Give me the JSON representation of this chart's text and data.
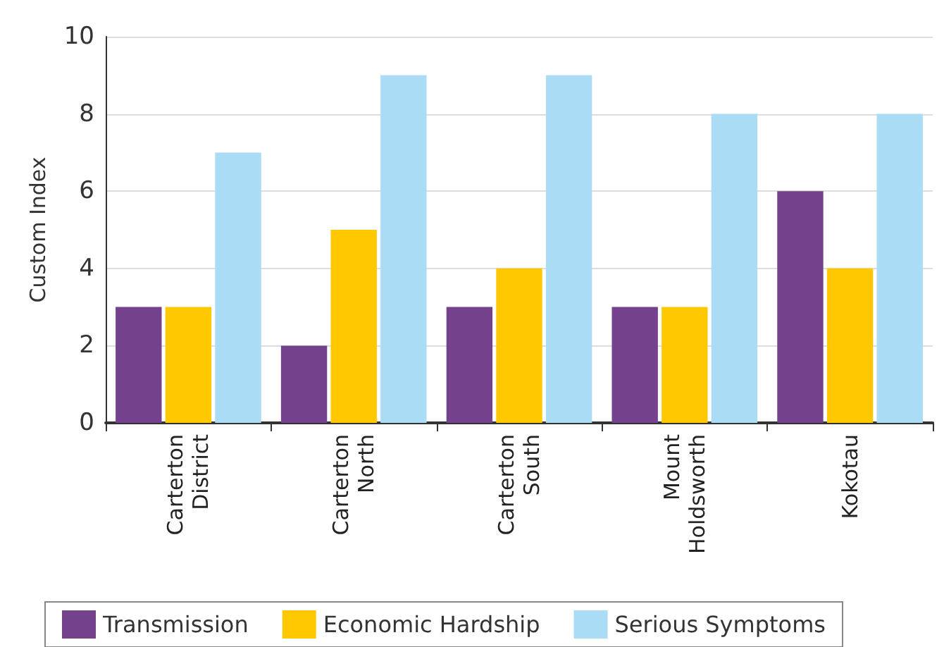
{
  "chart_data": {
    "type": "bar",
    "ylabel": "Custom Index",
    "categories": [
      "Carterton District",
      "Carterton North",
      "Carterton South",
      "Mount Holdsworth",
      "Kokotau"
    ],
    "series": [
      {
        "name": "Transmission",
        "color": "#74428c",
        "values": [
          3,
          2,
          3,
          3,
          6
        ]
      },
      {
        "name": "Economic Hardship",
        "color": "#ffc800",
        "values": [
          3,
          5,
          4,
          3,
          4
        ]
      },
      {
        "name": "Serious Symptoms",
        "color": "#aadcf5",
        "values": [
          7,
          9,
          9,
          8,
          8
        ]
      }
    ],
    "ylim": [
      0,
      10
    ],
    "yticks": [
      0,
      2,
      4,
      6,
      8,
      10
    ],
    "grid": "y",
    "legend": "bottom"
  }
}
